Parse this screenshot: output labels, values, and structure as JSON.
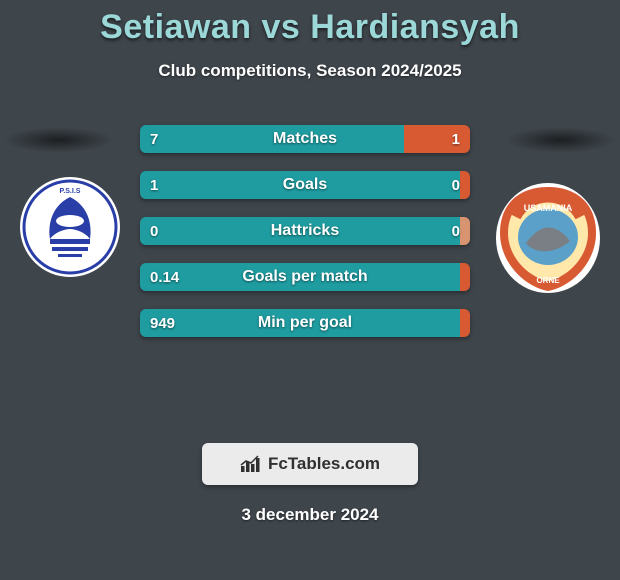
{
  "background_color": "#3e454b",
  "title": "Setiawan vs Hardiansyah",
  "title_color": "#9cd8d8",
  "subtitle": "Club competitions, Season 2024/2025",
  "date": "3 december 2024",
  "attribution_text": "FcTables.com",
  "attribution_bg": "#ebebeb",
  "attribution_text_color": "#303030",
  "left_fill_color": "#1e9ca0",
  "right_fill_color": "#d85a32",
  "bar_orange_pale": "#d89470",
  "bars": [
    {
      "label": "Matches",
      "left": "7",
      "right": "1",
      "left_pct": 80,
      "right_color": "#d85a32"
    },
    {
      "label": "Goals",
      "left": "1",
      "right": "0",
      "left_pct": 100,
      "right_color": "#d85a32"
    },
    {
      "label": "Hattricks",
      "left": "0",
      "right": "0",
      "left_pct": 100,
      "right_color": "#d89470"
    },
    {
      "label": "Goals per match",
      "left": "0.14",
      "right": "",
      "left_pct": 100,
      "right_color": "#d85a32"
    },
    {
      "label": "Min per goal",
      "left": "949",
      "right": "",
      "left_pct": 100,
      "right_color": "#d85a32"
    }
  ],
  "logo_left": {
    "bg": "#ffffff",
    "ring": "#2a3ea8",
    "accent": "#2a3ea8"
  },
  "logo_right": {
    "bg": "#ffffff",
    "outer": "#d85a32",
    "inner": "#5aa0c8",
    "band": "#d85a32"
  }
}
